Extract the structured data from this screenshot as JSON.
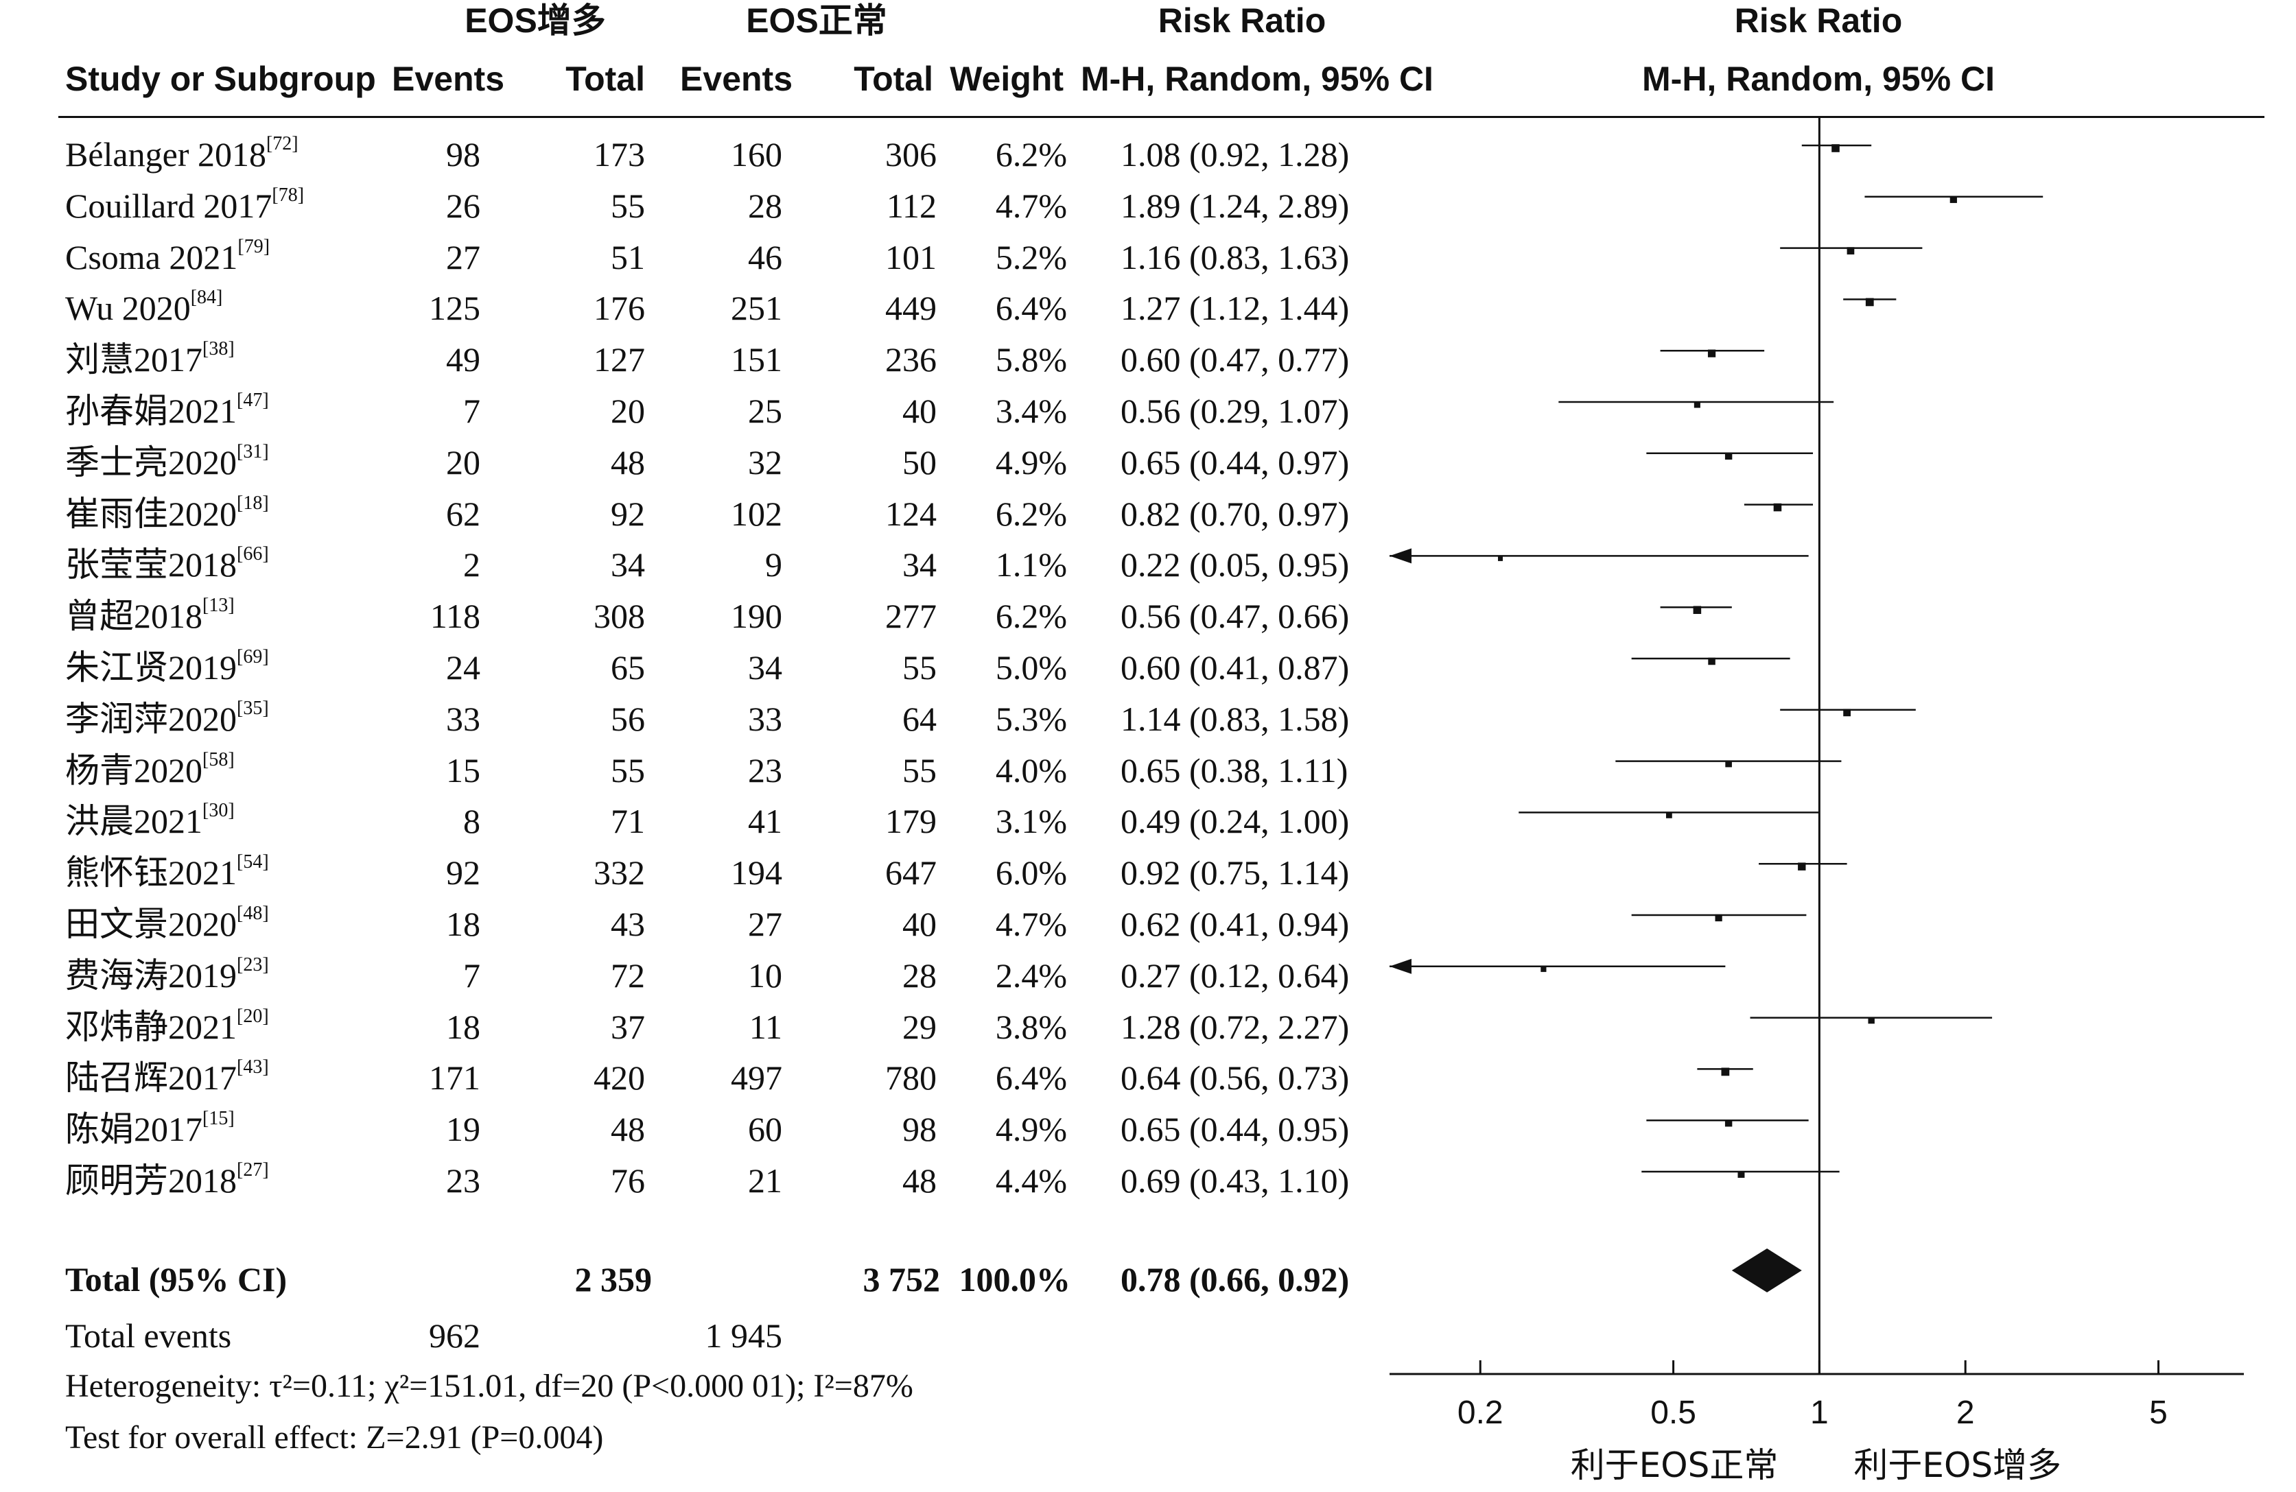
{
  "headers": {
    "group_exp": "EOS增多",
    "group_ctrl": "EOS正常",
    "risk_ratio": "Risk Ratio",
    "risk_ratio_plot": "Risk Ratio",
    "study_col": "Study or Subgroup",
    "events_exp": "Events",
    "total_exp": "Total",
    "events_ctrl": "Events",
    "total_ctrl": "Total",
    "weight": "Weight",
    "method": "M-H, Random, 95% CI",
    "method_plot": "M-H, Random, 95% CI"
  },
  "chart_data": {
    "type": "forest",
    "x_scale": "log",
    "xlim": [
      0.13,
      7.5
    ],
    "reference_line": 1,
    "x_ticks": [
      0.2,
      0.5,
      1,
      2,
      5
    ],
    "x_tick_labels": [
      "0.2",
      "0.5",
      "1",
      "2",
      "5"
    ],
    "favours_left": "利于EOS正常",
    "favours_right": "利于EOS增多",
    "studies": [
      {
        "name": "Bélanger 2018",
        "ref": "[72]",
        "ev_exp": "98",
        "tot_exp": "173",
        "ev_ctrl": "160",
        "tot_ctrl": "306",
        "weight": "6.2%",
        "ci_text": "1.08 (0.92, 1.28)",
        "rr": 1.08,
        "lo": 0.92,
        "hi": 1.28
      },
      {
        "name": "Couillard 2017",
        "ref": "[78]",
        "ev_exp": "26",
        "tot_exp": "55",
        "ev_ctrl": "28",
        "tot_ctrl": "112",
        "weight": "4.7%",
        "ci_text": "1.89 (1.24, 2.89)",
        "rr": 1.89,
        "lo": 1.24,
        "hi": 2.89
      },
      {
        "name": "Csoma 2021",
        "ref": "[79]",
        "ev_exp": "27",
        "tot_exp": "51",
        "ev_ctrl": "46",
        "tot_ctrl": "101",
        "weight": "5.2%",
        "ci_text": "1.16 (0.83, 1.63)",
        "rr": 1.16,
        "lo": 0.83,
        "hi": 1.63
      },
      {
        "name": "Wu 2020",
        "ref": "[84]",
        "ev_exp": "125",
        "tot_exp": "176",
        "ev_ctrl": "251",
        "tot_ctrl": "449",
        "weight": "6.4%",
        "ci_text": "1.27 (1.12, 1.44)",
        "rr": 1.27,
        "lo": 1.12,
        "hi": 1.44
      },
      {
        "name": "刘慧2017",
        "ref": "[38]",
        "ev_exp": "49",
        "tot_exp": "127",
        "ev_ctrl": "151",
        "tot_ctrl": "236",
        "weight": "5.8%",
        "ci_text": "0.60 (0.47, 0.77)",
        "rr": 0.6,
        "lo": 0.47,
        "hi": 0.77
      },
      {
        "name": "孙春娟2021",
        "ref": "[47]",
        "ev_exp": "7",
        "tot_exp": "20",
        "ev_ctrl": "25",
        "tot_ctrl": "40",
        "weight": "3.4%",
        "ci_text": "0.56 (0.29, 1.07)",
        "rr": 0.56,
        "lo": 0.29,
        "hi": 1.07
      },
      {
        "name": "季士亮2020",
        "ref": "[31]",
        "ev_exp": "20",
        "tot_exp": "48",
        "ev_ctrl": "32",
        "tot_ctrl": "50",
        "weight": "4.9%",
        "ci_text": "0.65 (0.44, 0.97)",
        "rr": 0.65,
        "lo": 0.44,
        "hi": 0.97
      },
      {
        "name": "崔雨佳2020",
        "ref": "[18]",
        "ev_exp": "62",
        "tot_exp": "92",
        "ev_ctrl": "102",
        "tot_ctrl": "124",
        "weight": "6.2%",
        "ci_text": "0.82 (0.70, 0.97)",
        "rr": 0.82,
        "lo": 0.7,
        "hi": 0.97
      },
      {
        "name": "张莹莹2018",
        "ref": "[66]",
        "ev_exp": "2",
        "tot_exp": "34",
        "ev_ctrl": "9",
        "tot_ctrl": "34",
        "weight": "1.1%",
        "ci_text": "0.22 (0.05, 0.95)",
        "rr": 0.22,
        "lo": 0.05,
        "hi": 0.95
      },
      {
        "name": "曾超2018",
        "ref": "[13]",
        "ev_exp": "118",
        "tot_exp": "308",
        "ev_ctrl": "190",
        "tot_ctrl": "277",
        "weight": "6.2%",
        "ci_text": "0.56 (0.47, 0.66)",
        "rr": 0.56,
        "lo": 0.47,
        "hi": 0.66
      },
      {
        "name": "朱江贤2019",
        "ref": "[69]",
        "ev_exp": "24",
        "tot_exp": "65",
        "ev_ctrl": "34",
        "tot_ctrl": "55",
        "weight": "5.0%",
        "ci_text": "0.60 (0.41, 0.87)",
        "rr": 0.6,
        "lo": 0.41,
        "hi": 0.87
      },
      {
        "name": "李润萍2020",
        "ref": "[35]",
        "ev_exp": "33",
        "tot_exp": "56",
        "ev_ctrl": "33",
        "tot_ctrl": "64",
        "weight": "5.3%",
        "ci_text": "1.14 (0.83, 1.58)",
        "rr": 1.14,
        "lo": 0.83,
        "hi": 1.58
      },
      {
        "name": "杨青2020",
        "ref": "[58]",
        "ev_exp": "15",
        "tot_exp": "55",
        "ev_ctrl": "23",
        "tot_ctrl": "55",
        "weight": "4.0%",
        "ci_text": "0.65 (0.38, 1.11)",
        "rr": 0.65,
        "lo": 0.38,
        "hi": 1.11
      },
      {
        "name": "洪晨2021",
        "ref": "[30]",
        "ev_exp": "8",
        "tot_exp": "71",
        "ev_ctrl": "41",
        "tot_ctrl": "179",
        "weight": "3.1%",
        "ci_text": "0.49 (0.24, 1.00)",
        "rr": 0.49,
        "lo": 0.24,
        "hi": 1.0
      },
      {
        "name": "熊怀钰2021",
        "ref": "[54]",
        "ev_exp": "92",
        "tot_exp": "332",
        "ev_ctrl": "194",
        "tot_ctrl": "647",
        "weight": "6.0%",
        "ci_text": "0.92 (0.75, 1.14)",
        "rr": 0.92,
        "lo": 0.75,
        "hi": 1.14
      },
      {
        "name": "田文景2020",
        "ref": "[48]",
        "ev_exp": "18",
        "tot_exp": "43",
        "ev_ctrl": "27",
        "tot_ctrl": "40",
        "weight": "4.7%",
        "ci_text": "0.62 (0.41, 0.94)",
        "rr": 0.62,
        "lo": 0.41,
        "hi": 0.94
      },
      {
        "name": "费海涛2019",
        "ref": "[23]",
        "ev_exp": "7",
        "tot_exp": "72",
        "ev_ctrl": "10",
        "tot_ctrl": "28",
        "weight": "2.4%",
        "ci_text": "0.27 (0.12, 0.64)",
        "rr": 0.27,
        "lo": 0.12,
        "hi": 0.64
      },
      {
        "name": "邓炜静2021",
        "ref": "[20]",
        "ev_exp": "18",
        "tot_exp": "37",
        "ev_ctrl": "11",
        "tot_ctrl": "29",
        "weight": "3.8%",
        "ci_text": "1.28 (0.72, 2.27)",
        "rr": 1.28,
        "lo": 0.72,
        "hi": 2.27
      },
      {
        "name": "陆召辉2017",
        "ref": "[43]",
        "ev_exp": "171",
        "tot_exp": "420",
        "ev_ctrl": "497",
        "tot_ctrl": "780",
        "weight": "6.4%",
        "ci_text": "0.64 (0.56, 0.73)",
        "rr": 0.64,
        "lo": 0.56,
        "hi": 0.73
      },
      {
        "name": "陈娟2017",
        "ref": "[15]",
        "ev_exp": "19",
        "tot_exp": "48",
        "ev_ctrl": "60",
        "tot_ctrl": "98",
        "weight": "4.9%",
        "ci_text": "0.65 (0.44, 0.95)",
        "rr": 0.65,
        "lo": 0.44,
        "hi": 0.95
      },
      {
        "name": "顾明芳2018",
        "ref": "[27]",
        "ev_exp": "23",
        "tot_exp": "76",
        "ev_ctrl": "21",
        "tot_ctrl": "48",
        "weight": "4.4%",
        "ci_text": "0.69 (0.43, 1.10)",
        "rr": 0.69,
        "lo": 0.43,
        "hi": 1.1
      }
    ],
    "total": {
      "label": "Total (95% CI)",
      "tot_exp": "2 359",
      "tot_ctrl": "3 752",
      "weight": "100.0%",
      "ci_text": "0.78 (0.66, 0.92)",
      "rr": 0.78,
      "lo": 0.66,
      "hi": 0.92
    },
    "total_events": {
      "label": "Total events",
      "exp": "962",
      "ctrl": "1 945"
    }
  },
  "footer": {
    "heterogeneity": "Heterogeneity: τ²=0.11; χ²=151.01, df=20 (P<0.000 01); I²=87%",
    "overall": "Test for overall effect: Z=2.91 (P=0.004)"
  }
}
